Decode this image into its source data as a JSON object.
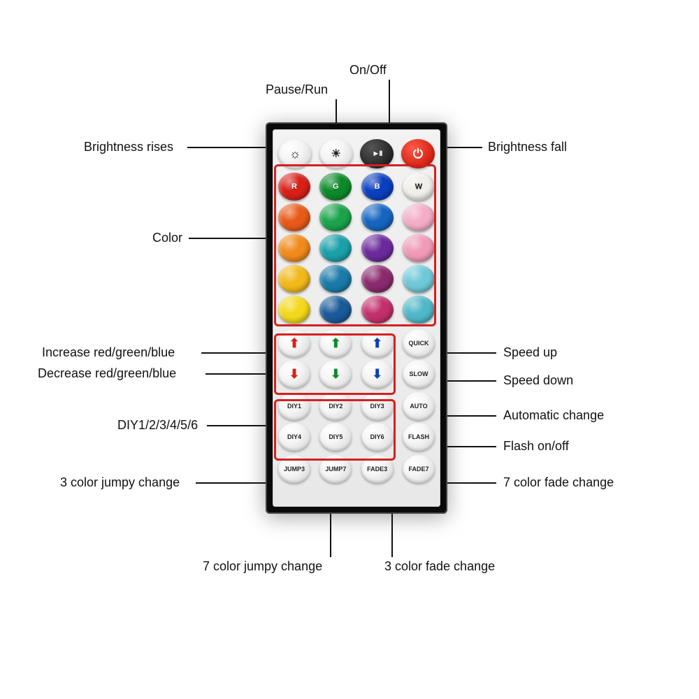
{
  "labels": {
    "onoff": "On/Off",
    "pauserun": "Pause/Run",
    "brightness_rises": "Brightness rises",
    "brightness_fall": "Brightness fall",
    "color": "Color",
    "inc_rgb": "Increase red/green/blue",
    "dec_rgb": "Decrease red/green/blue",
    "diy": "DIY1/2/3/4/5/6",
    "jumpy3": "3 color jumpy change",
    "jumpy7": "7 color jumpy change",
    "fade3": "3 color fade change",
    "fade7": "7 color fade change",
    "speedup": "Speed up",
    "speeddown": "Speed down",
    "auto": "Automatic change",
    "flash": "Flash on/off"
  },
  "topRow": {
    "brightUp": "☼",
    "brightDown": "☀",
    "play": "▸ǁ",
    "power": "⏻"
  },
  "rgbwLabels": {
    "r": "R",
    "g": "G",
    "b": "B",
    "w": "W"
  },
  "colorGrid": [
    [
      {
        "bg": "#d82018",
        "label": "R"
      },
      {
        "bg": "#0c8a2a",
        "label": "G"
      },
      {
        "bg": "#0a3fbf",
        "label": "B"
      },
      {
        "bg": "#f0efe9",
        "label": "W",
        "textColor": "#222"
      }
    ],
    [
      {
        "bg": "#e85a18"
      },
      {
        "bg": "#1aa34a"
      },
      {
        "bg": "#1565c0"
      },
      {
        "bg": "#f3adc7"
      }
    ],
    [
      {
        "bg": "#f08a1a"
      },
      {
        "bg": "#1aa0a8"
      },
      {
        "bg": "#6a2a9c"
      },
      {
        "bg": "#f09ab8"
      }
    ],
    [
      {
        "bg": "#f2b81a"
      },
      {
        "bg": "#1a7aa8"
      },
      {
        "bg": "#8a2a6c"
      },
      {
        "bg": "#6fc8d8"
      }
    ],
    [
      {
        "bg": "#f2d81a"
      },
      {
        "bg": "#1a5a98"
      },
      {
        "bg": "#c2306c"
      },
      {
        "bg": "#4fb8c8"
      }
    ]
  ],
  "arrowColors": {
    "r": "#d82018",
    "g": "#0c8a2a",
    "b": "#0a3fbf"
  },
  "funcRow1": {
    "quick": "QUICK"
  },
  "funcRow2": {
    "slow": "SLOW"
  },
  "diyLabels": {
    "d1": "DIY1",
    "d2": "DIY2",
    "d3": "DIY3",
    "d4": "DIY4",
    "d5": "DIY5",
    "d6": "DIY6"
  },
  "funcSide": {
    "auto": "AUTO",
    "flash": "FLASH"
  },
  "bottomRow": {
    "j3": "JUMP3",
    "j7": "JUMP7",
    "f3": "FADE3",
    "f7": "FADE7"
  },
  "style": {
    "label_fontsize": 18,
    "label_color": "#111111",
    "highlight_border": "#d42020",
    "remote_bg": "#0a0a0a",
    "face_bg": "#eeeeee"
  }
}
